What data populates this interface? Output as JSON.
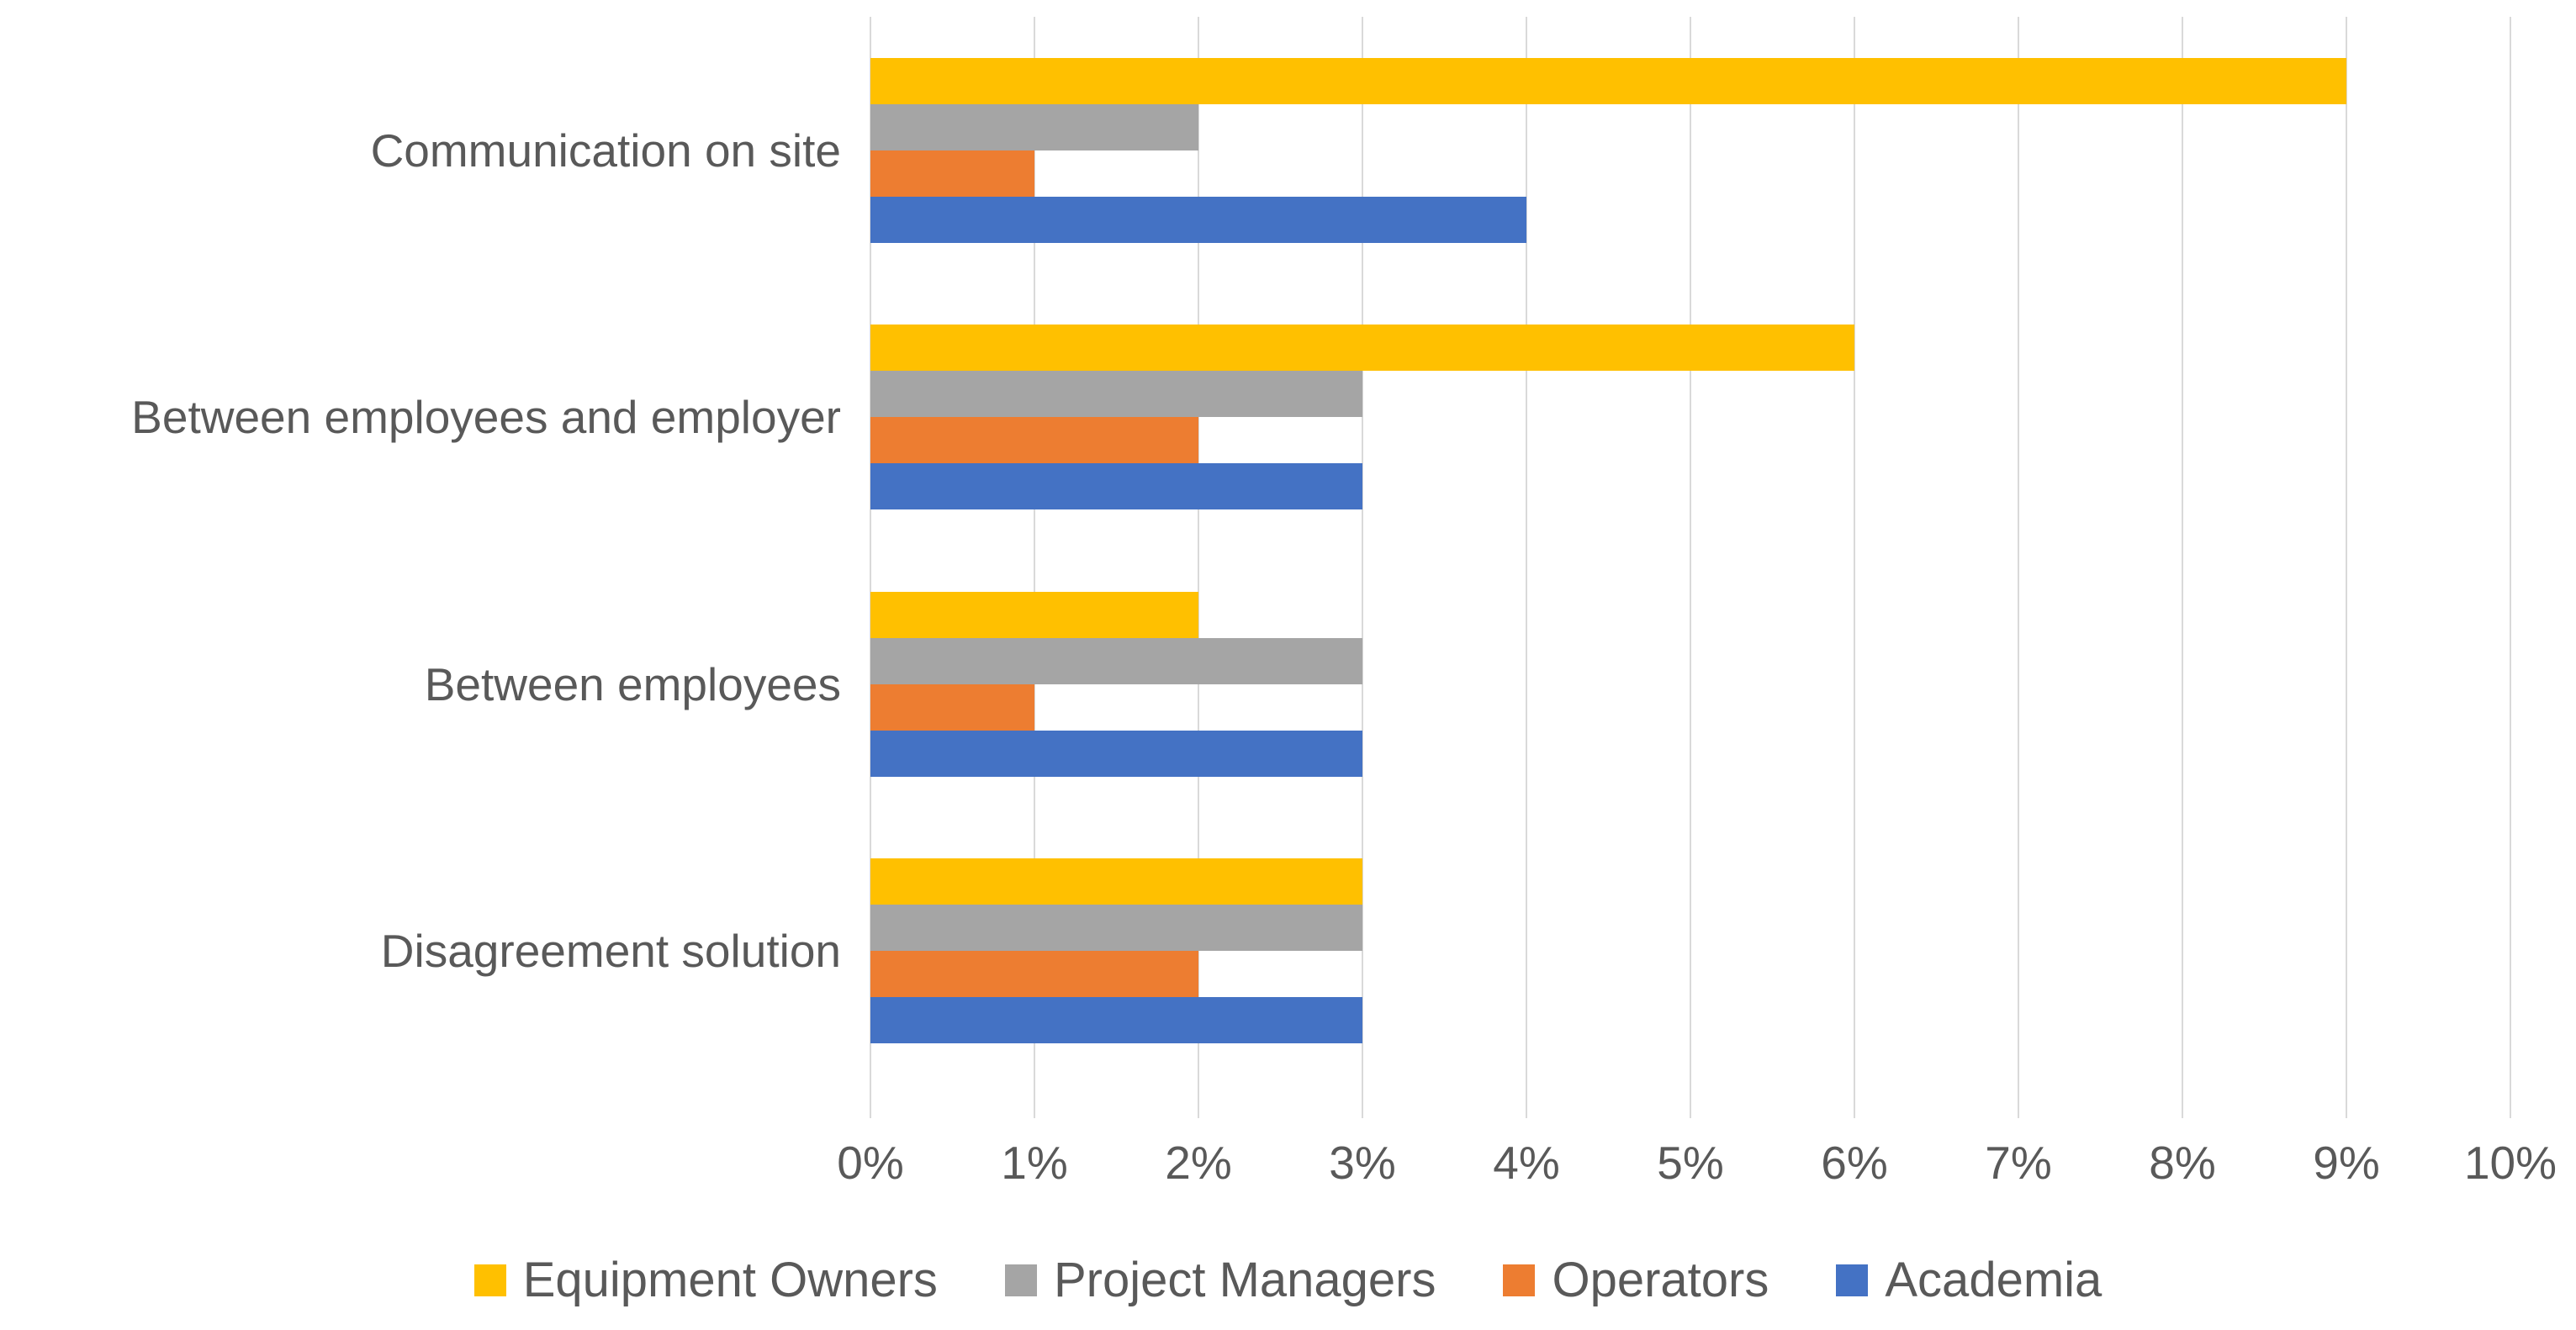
{
  "chart_data": {
    "type": "bar",
    "orientation": "horizontal",
    "title": "",
    "xlabel": "",
    "ylabel": "",
    "categories": [
      "Communication on site",
      "Between employees and employer",
      "Between employees",
      "Disagreement solution"
    ],
    "series": [
      {
        "name": "Equipment Owners",
        "color": "#FFC000",
        "values": [
          9,
          6,
          2,
          3
        ]
      },
      {
        "name": "Project Managers",
        "color": "#A5A5A5",
        "values": [
          2,
          3,
          3,
          3
        ]
      },
      {
        "name": "Operators",
        "color": "#ED7D31",
        "values": [
          1,
          2,
          1,
          2
        ]
      },
      {
        "name": "Academia",
        "color": "#4472C4",
        "values": [
          4,
          3,
          3,
          3
        ]
      }
    ],
    "axis": {
      "min": 0,
      "max": 10,
      "step": 1,
      "unit": "%",
      "tick_labels": [
        "0%",
        "1%",
        "2%",
        "3%",
        "4%",
        "5%",
        "6%",
        "7%",
        "8%",
        "9%",
        "10%"
      ]
    },
    "grid": true,
    "legend_position": "bottom",
    "style": {
      "gridline_color": "#D9D9D9",
      "tick_color": "#D9D9D9",
      "text_color": "#595959"
    }
  }
}
